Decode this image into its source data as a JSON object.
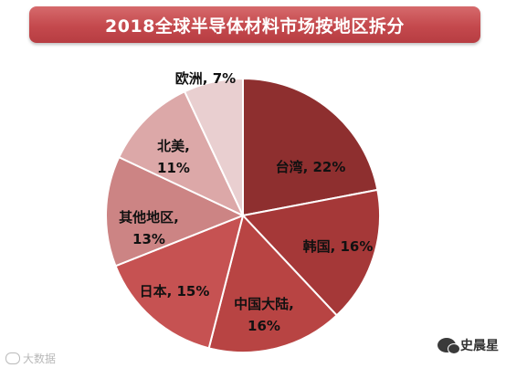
{
  "chart_data": {
    "type": "pie",
    "title": "2018全球半导体材料市场按地区拆分",
    "slices": [
      {
        "label": "台湾",
        "value": 22,
        "display": "台湾, 22%",
        "color": "#8e2f2f"
      },
      {
        "label": "韩国",
        "value": 16,
        "display": "韩国, 16%",
        "color": "#a53838"
      },
      {
        "label": "中国大陆",
        "value": 16,
        "display": [
          "中国大陆,",
          "16%"
        ],
        "color": "#b84443"
      },
      {
        "label": "日本",
        "value": 15,
        "display": "日本, 15%",
        "color": "#c65252"
      },
      {
        "label": "其他地区",
        "value": 13,
        "display": [
          "其他地区,",
          "13%"
        ],
        "color": "#cc8484"
      },
      {
        "label": "北美",
        "value": 11,
        "display": [
          "北美,",
          "11%"
        ],
        "color": "#dca8a8"
      },
      {
        "label": "欧洲",
        "value": 7,
        "display": "欧洲, 7%",
        "color": "#e9cfd0"
      }
    ]
  },
  "watermark": {
    "left_text": "大数据",
    "right_text": "史晨星"
  }
}
